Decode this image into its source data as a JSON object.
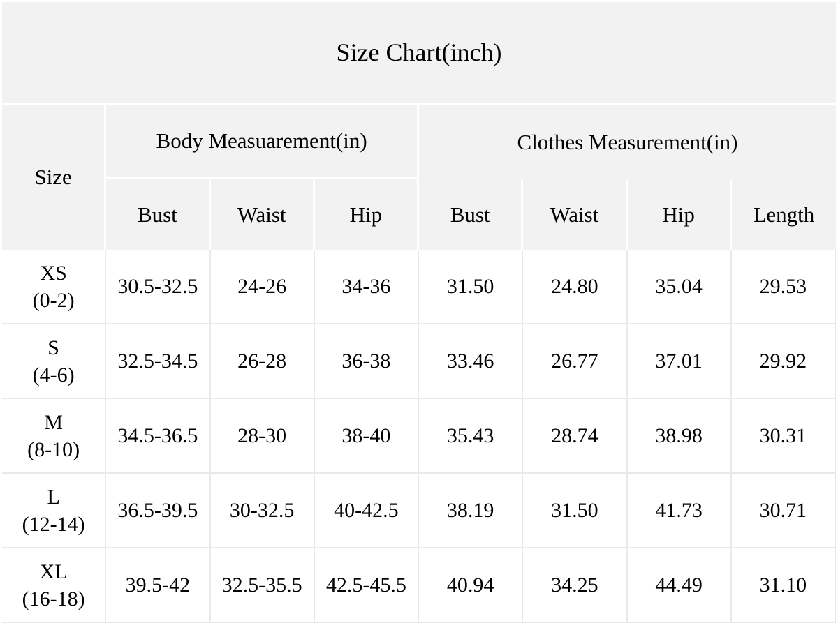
{
  "title": "Size Chart(inch)",
  "table": {
    "size_header": "Size",
    "groups": [
      {
        "label": "Body Measuarement(in)",
        "columns": [
          "Bust",
          "Waist",
          "Hip"
        ]
      },
      {
        "label": "Clothes Measurement(in)",
        "columns": [
          "Bust",
          "Waist",
          "Hip",
          "Length"
        ]
      }
    ],
    "rows": [
      {
        "size": "XS",
        "range": "(0-2)",
        "body": [
          "30.5-32.5",
          "24-26",
          "34-36"
        ],
        "clothes": [
          "31.50",
          "24.80",
          "35.04",
          "29.53"
        ]
      },
      {
        "size": "S",
        "range": "(4-6)",
        "body": [
          "32.5-34.5",
          "26-28",
          "36-38"
        ],
        "clothes": [
          "33.46",
          "26.77",
          "37.01",
          "29.92"
        ]
      },
      {
        "size": "M",
        "range": "(8-10)",
        "body": [
          "34.5-36.5",
          "28-30",
          "38-40"
        ],
        "clothes": [
          "35.43",
          "28.74",
          "38.98",
          "30.31"
        ]
      },
      {
        "size": "L",
        "range": "(12-14)",
        "body": [
          "36.5-39.5",
          "30-32.5",
          "40-42.5"
        ],
        "clothes": [
          "38.19",
          "31.50",
          "41.73",
          "30.71"
        ]
      },
      {
        "size": "XL",
        "range": "(16-18)",
        "body": [
          "39.5-42",
          "32.5-35.5",
          "42.5-45.5"
        ],
        "clothes": [
          "40.94",
          "34.25",
          "44.49",
          "31.10"
        ]
      }
    ]
  },
  "colors": {
    "header_bg": "#f2f2f2",
    "cell_bg": "#ffffff",
    "header_border": "#ffffff",
    "data_border": "#e9e9e9",
    "text": "#000000"
  },
  "chart_data": {
    "type": "table",
    "title": "Size Chart(inch)",
    "column_groups": [
      {
        "label": "Body Measuarement(in)",
        "span": [
          "Bust",
          "Waist",
          "Hip"
        ]
      },
      {
        "label": "Clothes Measurement(in)",
        "span": [
          "Bust",
          "Waist",
          "Hip",
          "Length"
        ]
      }
    ],
    "columns": [
      "Size",
      "Body Bust",
      "Body Waist",
      "Body Hip",
      "Clothes Bust",
      "Clothes Waist",
      "Clothes Hip",
      "Clothes Length"
    ],
    "rows": [
      [
        "XS (0-2)",
        "30.5-32.5",
        "24-26",
        "34-36",
        "31.50",
        "24.80",
        "35.04",
        "29.53"
      ],
      [
        "S (4-6)",
        "32.5-34.5",
        "26-28",
        "36-38",
        "33.46",
        "26.77",
        "37.01",
        "29.92"
      ],
      [
        "M (8-10)",
        "34.5-36.5",
        "28-30",
        "38-40",
        "35.43",
        "28.74",
        "38.98",
        "30.31"
      ],
      [
        "L (12-14)",
        "36.5-39.5",
        "30-32.5",
        "40-42.5",
        "38.19",
        "31.50",
        "41.73",
        "30.71"
      ],
      [
        "XL (16-18)",
        "39.5-42",
        "32.5-35.5",
        "42.5-45.5",
        "40.94",
        "34.25",
        "44.49",
        "31.10"
      ]
    ]
  }
}
